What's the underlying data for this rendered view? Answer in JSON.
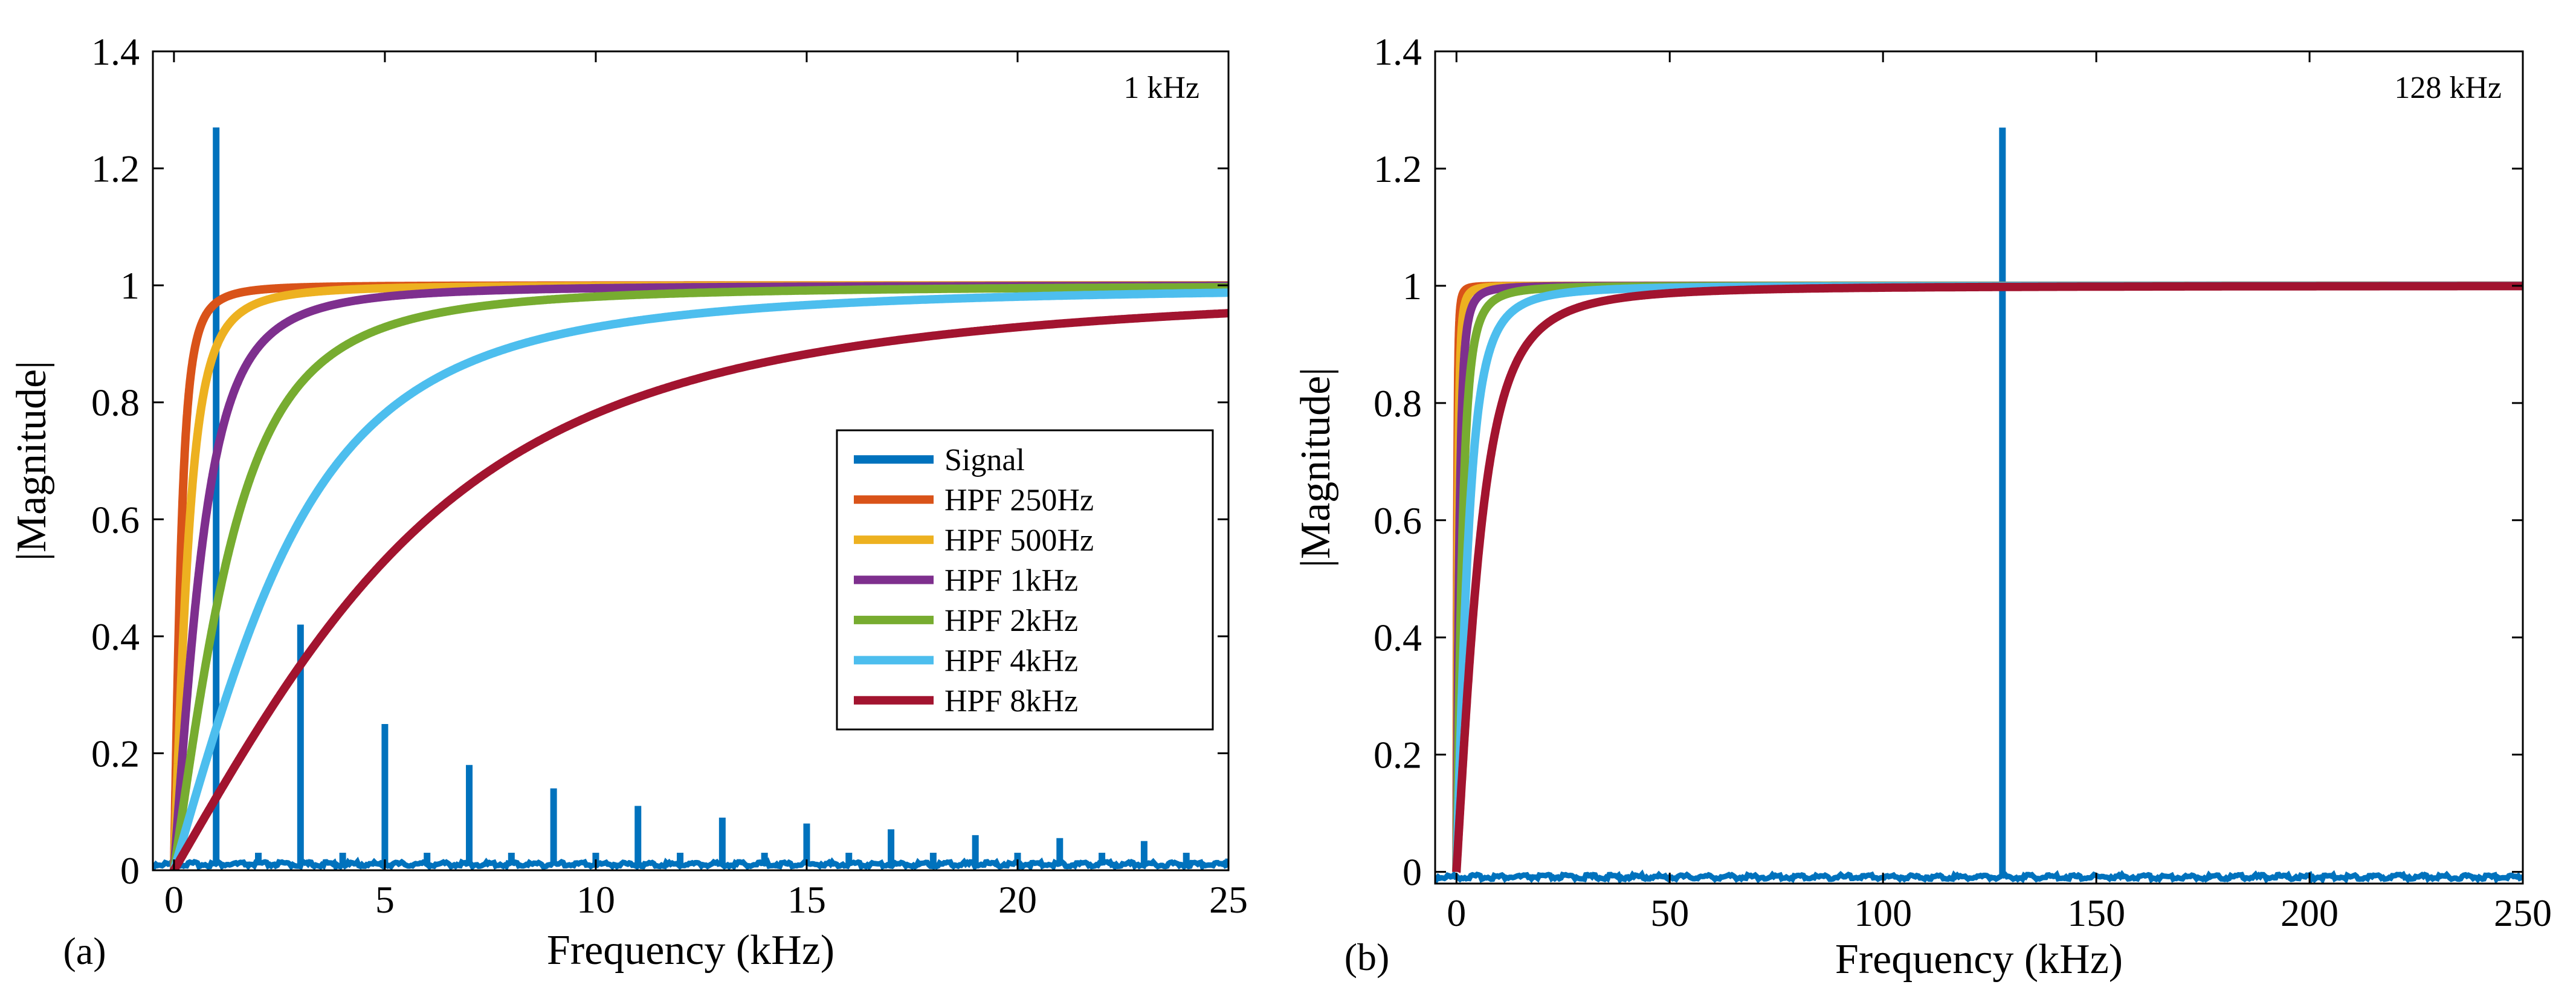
{
  "colors": {
    "signal": "#0072BD",
    "hpf_250": "#D95319",
    "hpf_500": "#EDB120",
    "hpf_1k": "#7E2F8E",
    "hpf_2k": "#77AC30",
    "hpf_4k": "#4DBEEE",
    "hpf_8k": "#A2142F"
  },
  "chart_data": [
    {
      "type": "line",
      "panel_label": "(a)",
      "annotation": "1 kHz",
      "xlabel": "Frequency (kHz)",
      "ylabel": "|Magnitude|",
      "xlim": [
        -0.5,
        25
      ],
      "ylim": [
        0,
        1.4
      ],
      "xticks": [
        0,
        5,
        10,
        15,
        20,
        25
      ],
      "xtick_labels": [
        "0",
        "5",
        "10",
        "15",
        "20",
        "25"
      ],
      "yticks": [
        0,
        0.2,
        0.4,
        0.6,
        0.8,
        1,
        1.2,
        1.4
      ],
      "ytick_labels": [
        "0",
        "0.2",
        "0.4",
        "0.6",
        "0.8",
        "1",
        "1.2",
        "1.4"
      ],
      "grid": false,
      "legend_position": "middle-right",
      "series": [
        {
          "name": "Signal",
          "kind": "stem",
          "x": [
            1,
            2,
            3,
            4,
            5,
            6,
            7,
            8,
            9,
            10,
            11,
            12,
            13,
            14,
            15,
            16,
            17,
            18,
            19,
            20,
            21,
            22,
            23,
            24,
            25
          ],
          "y": [
            1.27,
            0.03,
            0.42,
            0.03,
            0.25,
            0.03,
            0.18,
            0.03,
            0.14,
            0.03,
            0.11,
            0.03,
            0.09,
            0.03,
            0.08,
            0.03,
            0.07,
            0.03,
            0.06,
            0.03,
            0.055,
            0.03,
            0.05,
            0.03,
            0.02
          ]
        },
        {
          "name": "HPF 250Hz",
          "kind": "hpf",
          "cutoff_khz": 0.25
        },
        {
          "name": "HPF 500Hz",
          "kind": "hpf",
          "cutoff_khz": 0.5
        },
        {
          "name": "HPF 1kHz",
          "kind": "hpf",
          "cutoff_khz": 1
        },
        {
          "name": "HPF 2kHz",
          "kind": "hpf",
          "cutoff_khz": 2
        },
        {
          "name": "HPF 4kHz",
          "kind": "hpf",
          "cutoff_khz": 4
        },
        {
          "name": "HPF 8kHz",
          "kind": "hpf",
          "cutoff_khz": 8
        }
      ]
    },
    {
      "type": "line",
      "panel_label": "(b)",
      "annotation": "128 kHz",
      "xlabel": "Frequency (kHz)",
      "ylabel": "|Magnitude|",
      "xlim": [
        -5,
        250
      ],
      "ylim": [
        -0.02,
        1.4
      ],
      "xticks": [
        0,
        50,
        100,
        150,
        200,
        250
      ],
      "xtick_labels": [
        "0",
        "50",
        "100",
        "150",
        "200",
        "250"
      ],
      "yticks": [
        0,
        0.2,
        0.4,
        0.6,
        0.8,
        1,
        1.2,
        1.4
      ],
      "ytick_labels": [
        "0",
        "0.2",
        "0.4",
        "0.6",
        "0.8",
        "1",
        "1.2",
        "1.4"
      ],
      "grid": false,
      "legend_position": "none",
      "series": [
        {
          "name": "Signal",
          "kind": "stem",
          "x": [
            128
          ],
          "y": [
            1.27
          ]
        },
        {
          "name": "HPF 250Hz",
          "kind": "hpf",
          "cutoff_khz": 0.25
        },
        {
          "name": "HPF 500Hz",
          "kind": "hpf",
          "cutoff_khz": 0.5
        },
        {
          "name": "HPF 1kHz",
          "kind": "hpf",
          "cutoff_khz": 1
        },
        {
          "name": "HPF 2kHz",
          "kind": "hpf",
          "cutoff_khz": 2
        },
        {
          "name": "HPF 4kHz",
          "kind": "hpf",
          "cutoff_khz": 4
        },
        {
          "name": "HPF 8kHz",
          "kind": "hpf",
          "cutoff_khz": 8
        }
      ]
    }
  ]
}
